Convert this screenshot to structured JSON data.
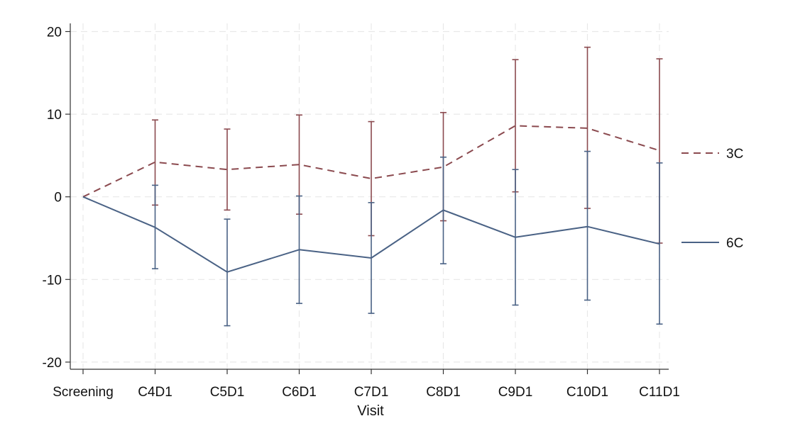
{
  "chart_data": {
    "type": "line",
    "title": "",
    "xlabel": "Visit",
    "ylabel": "",
    "categories": [
      "Screening",
      "C4D1",
      "C5D1",
      "C6D1",
      "C7D1",
      "C8D1",
      "C9D1",
      "C10D1",
      "C11D1"
    ],
    "ylim": [
      -21,
      21
    ],
    "yticks": [
      -20,
      -10,
      0,
      10,
      20
    ],
    "grid": true,
    "legend_position": "right",
    "series": [
      {
        "name": "3C",
        "color": "#8b4a4f",
        "style": "dashed",
        "values": [
          0,
          4.2,
          3.3,
          3.9,
          2.2,
          3.6,
          8.6,
          8.3,
          5.6
        ],
        "lower": [
          0,
          -1.0,
          -1.6,
          -2.1,
          -4.7,
          -2.9,
          0.6,
          -1.4,
          -5.6
        ],
        "upper": [
          0,
          9.3,
          8.2,
          9.9,
          9.1,
          10.2,
          16.6,
          18.1,
          16.7
        ]
      },
      {
        "name": "6C",
        "color": "#4a6285",
        "style": "solid",
        "values": [
          0,
          -3.7,
          -9.1,
          -6.4,
          -7.4,
          -1.6,
          -4.9,
          -3.6,
          -5.7
        ],
        "lower": [
          0,
          -8.7,
          -15.6,
          -12.9,
          -14.1,
          -8.1,
          -13.1,
          -12.5,
          -15.4
        ],
        "upper": [
          0,
          1.4,
          -2.7,
          0.1,
          -0.7,
          4.8,
          3.3,
          5.5,
          4.1
        ]
      }
    ]
  }
}
